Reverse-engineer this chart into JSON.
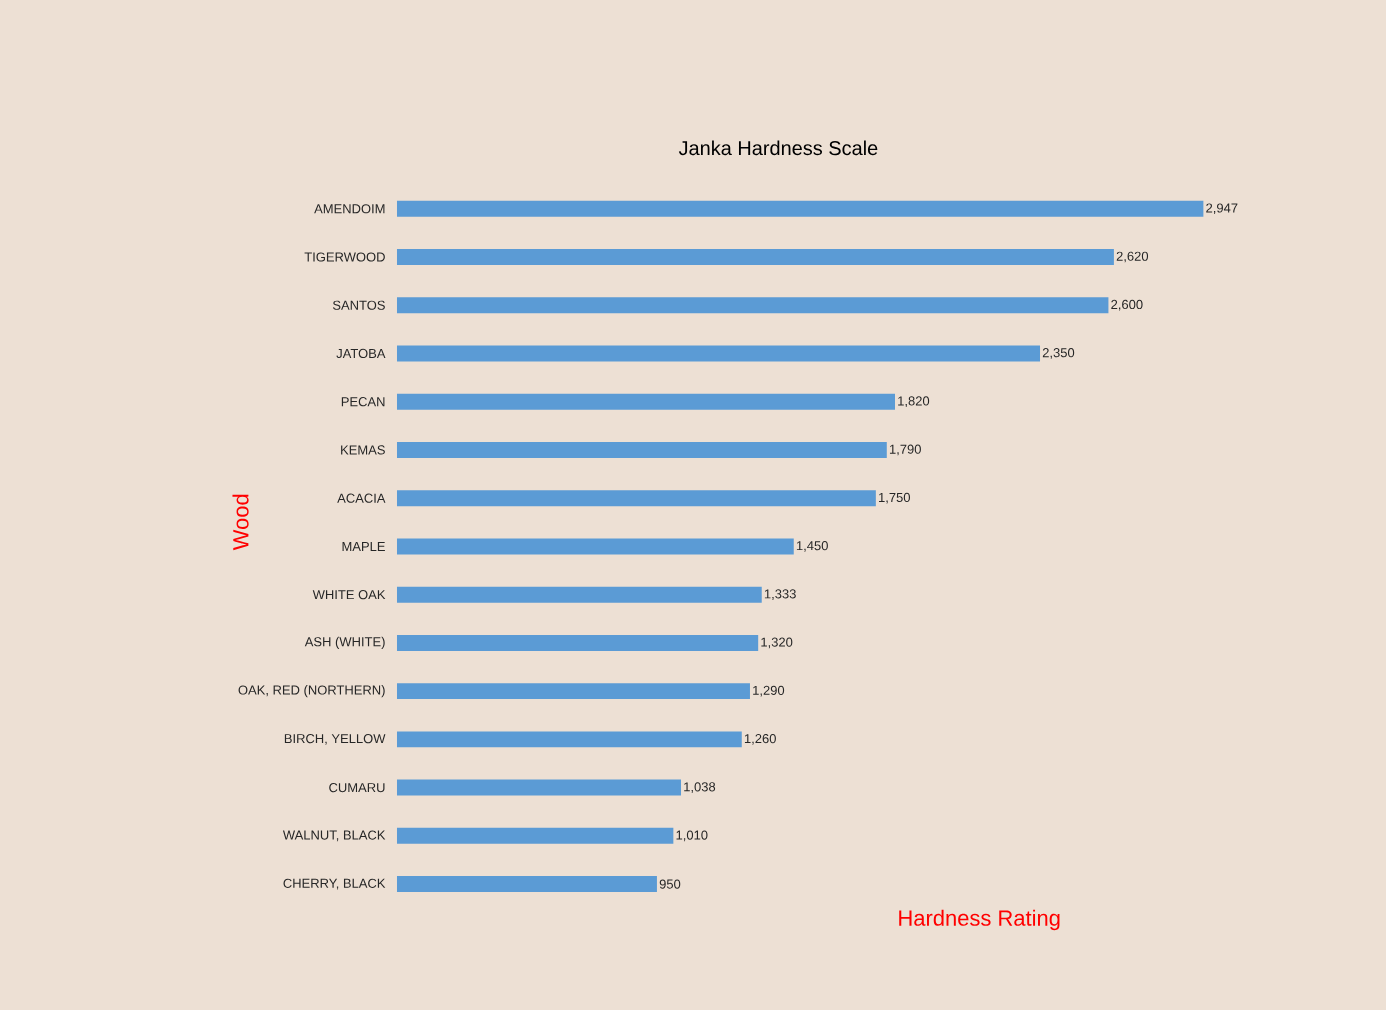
{
  "chart_data": {
    "type": "bar",
    "orientation": "horizontal",
    "title": "Janka Hardness Scale",
    "xlabel": "Hardness Rating",
    "ylabel": "Wood",
    "categories": [
      "AMENDOIM",
      "TIGERWOOD",
      "SANTOS",
      "JATOBA",
      "PECAN",
      "KEMAS",
      "ACACIA",
      "MAPLE",
      "WHITE OAK",
      "ASH (WHITE)",
      "OAK, RED (NORTHERN)",
      "BIRCH, YELLOW",
      "CUMARU",
      "WALNUT, BLACK",
      "CHERRY, BLACK"
    ],
    "values": [
      2947,
      2620,
      2600,
      2350,
      1820,
      1790,
      1750,
      1450,
      1333,
      1320,
      1290,
      1260,
      1038,
      1010,
      950
    ],
    "value_labels": [
      "2,947",
      "2,620",
      "2,600",
      "2,350",
      "1,820",
      "1,790",
      "1,750",
      "1,450",
      "1,333",
      "1,320",
      "1,290",
      "1,260",
      "1,038",
      "1,010",
      "950"
    ],
    "color": "#5b9bd5"
  }
}
